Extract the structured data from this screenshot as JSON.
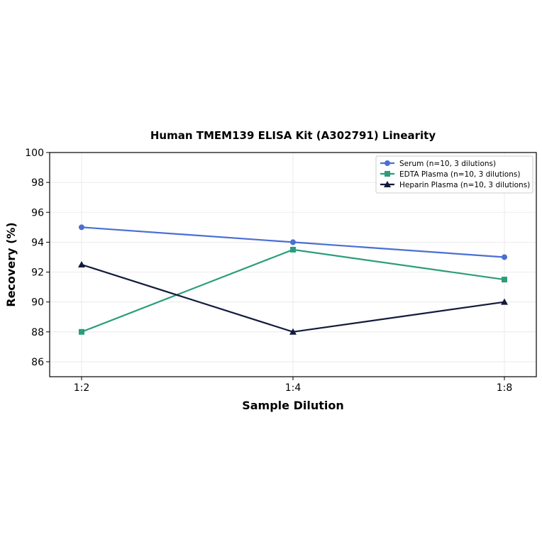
{
  "chart_data": {
    "type": "line",
    "title": "Human TMEM139 ELISA Kit (A302791) Linearity",
    "xlabel": "Sample Dilution",
    "ylabel": "Recovery (%)",
    "categories": [
      "1:2",
      "1:4",
      "1:8"
    ],
    "ylim": [
      85,
      100
    ],
    "yticks": [
      86,
      88,
      90,
      92,
      94,
      96,
      98,
      100
    ],
    "grid": true,
    "legend_position": "top-right",
    "series": [
      {
        "name": "Serum (n=10, 3 dilutions)",
        "values": [
          95.0,
          94.0,
          93.0
        ],
        "color": "#4a6fd4",
        "marker": "circle"
      },
      {
        "name": "EDTA Plasma (n=10, 3 dilutions)",
        "values": [
          88.0,
          93.5,
          91.5
        ],
        "color": "#2a9d7a",
        "marker": "square"
      },
      {
        "name": "Heparin Plasma (n=10, 3 dilutions)",
        "values": [
          92.5,
          88.0,
          90.0
        ],
        "color": "#121b3d",
        "marker": "triangle"
      }
    ]
  }
}
